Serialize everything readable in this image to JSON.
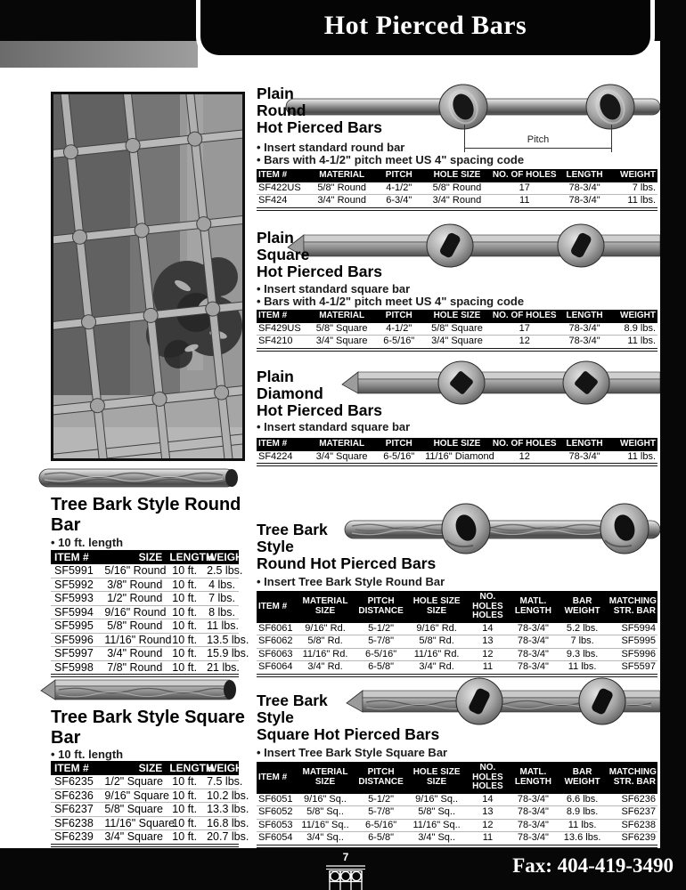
{
  "header": {
    "title": "Hot Pierced Bars"
  },
  "footer": {
    "page_number": "7",
    "fax": "Fax: 404-419-3490",
    "rail_icon": "railing-grille-icon"
  },
  "left_column": {
    "round_bar": {
      "title": "Tree Bark Style Round\nBar",
      "bullet": "10 ft. length",
      "headers": [
        "ITEM #",
        "SIZE",
        "LENGTH",
        "WEIGHT"
      ],
      "rows": [
        [
          "SF5991",
          "5/16\" Round",
          "10 ft.",
          "2.5 lbs."
        ],
        [
          "SF5992",
          "3/8\" Round",
          "10 ft.",
          "4 lbs."
        ],
        [
          "SF5993",
          "1/2\" Round",
          "10 ft.",
          "7 lbs."
        ],
        [
          "SF5994",
          "9/16\" Round",
          "10 ft.",
          "8 lbs."
        ],
        [
          "SF5995",
          "5/8\" Round",
          "10 ft.",
          "11 lbs."
        ],
        [
          "SF5996",
          "11/16\" Round",
          "10 ft.",
          "13.5 lbs."
        ],
        [
          "SF5997",
          "3/4\" Round",
          "10 ft.",
          "15.9 lbs."
        ],
        [
          "SF5998",
          "7/8\" Round",
          "10 ft.",
          "21 lbs."
        ]
      ]
    },
    "square_bar": {
      "title": "Tree Bark Style Square\nBar",
      "bullet": "10 ft. length",
      "headers": [
        "ITEM #",
        "SIZE",
        "LENGTH",
        "WEIGHT"
      ],
      "rows": [
        [
          "SF6235",
          "1/2\" Square",
          "10 ft.",
          "7.5 lbs."
        ],
        [
          "SF6236",
          "9/16\" Square",
          "10 ft.",
          "10.2 lbs."
        ],
        [
          "SF6237",
          "5/8\" Square",
          "10 ft.",
          "13.3 lbs."
        ],
        [
          "SF6238",
          "11/16\" Square",
          "10 ft.",
          "16.8 lbs."
        ],
        [
          "SF6239",
          "3/4\" Square",
          "10 ft.",
          "20.7 lbs."
        ]
      ]
    }
  },
  "right_column": {
    "plain_round": {
      "title": "Plain\nRound\nHot Pierced Bars",
      "bullets": [
        "Insert standard round bar",
        "Bars with 4-1/2\" pitch meet US 4\" spacing code"
      ],
      "pitch_label": "Pitch",
      "headers": [
        "ITEM #",
        "MATERIAL",
        "PITCH",
        "HOLE SIZE",
        "NO. OF HOLES",
        "LENGTH",
        "WEIGHT"
      ],
      "rows": [
        [
          "SF422US",
          "5/8\" Round",
          "4-1/2\"",
          "5/8\" Round",
          "17",
          "78-3/4\"",
          "7 lbs."
        ],
        [
          "SF424",
          "3/4\" Round",
          "6-3/4\"",
          "3/4\" Round",
          "11",
          "78-3/4\"",
          "11 lbs."
        ]
      ]
    },
    "plain_square": {
      "title": "Plain\nSquare\nHot Pierced Bars",
      "bullets": [
        "Insert standard square bar",
        "Bars with 4-1/2\" pitch meet US 4\" spacing code"
      ],
      "headers": [
        "ITEM #",
        "MATERIAL",
        "PITCH",
        "HOLE SIZE",
        "NO. OF HOLES",
        "LENGTH",
        "WEIGHT"
      ],
      "rows": [
        [
          "SF429US",
          "5/8\" Square",
          "4-1/2\"",
          "5/8\" Square",
          "17",
          "78-3/4\"",
          "8.9 lbs."
        ],
        [
          "SF4210",
          "3/4\" Square",
          "6-5/16\"",
          "3/4\" Square",
          "12",
          "78-3/4\"",
          "11 lbs."
        ]
      ]
    },
    "plain_diamond": {
      "title": "Plain\nDiamond\nHot Pierced Bars",
      "bullets": [
        "Insert standard square bar"
      ],
      "headers": [
        "ITEM #",
        "MATERIAL",
        "PITCH",
        "HOLE SIZE",
        "NO. OF HOLES",
        "LENGTH",
        "WEIGHT"
      ],
      "rows": [
        [
          "SF4224",
          "3/4\" Square",
          "6-5/16\"",
          "11/16\" Diamond",
          "12",
          "78-3/4\"",
          "11 lbs."
        ]
      ]
    },
    "tree_round": {
      "title": "Tree Bark\nStyle\nRound Hot Pierced Bars",
      "bullets": [
        "Insert Tree Bark Style Round Bar"
      ],
      "headers": [
        "ITEM #",
        "MATERIAL\nSIZE",
        "PITCH\nDISTANCE",
        "HOLE SIZE\nSIZE",
        "NO. HOLES\nHOLES",
        "MATL.\nLENGTH",
        "BAR\nWEIGHT",
        "MATCHING\nSTR. BAR"
      ],
      "rows": [
        [
          "SF6061",
          "9/16\" Rd.",
          "5-1/2\"",
          "9/16\" Rd.",
          "14",
          "78-3/4\"",
          "5.2 lbs.",
          "SF5994"
        ],
        [
          "SF6062",
          "5/8\" Rd.",
          "5-7/8\"",
          "5/8\" Rd.",
          "13",
          "78-3/4\"",
          "7 lbs.",
          "SF5995"
        ],
        [
          "SF6063",
          "11/16\" Rd.",
          "6-5/16\"",
          "11/16\" Rd.",
          "12",
          "78-3/4\"",
          "9.3 lbs.",
          "SF5996"
        ],
        [
          "SF6064",
          "3/4\" Rd.",
          "6-5/8\"",
          "3/4\" Rd.",
          "11",
          "78-3/4\"",
          "11 lbs.",
          "SF5597"
        ]
      ]
    },
    "tree_square": {
      "title": "Tree Bark\nStyle\nSquare Hot Pierced Bars",
      "bullets": [
        "Insert Tree Bark Style Square Bar"
      ],
      "headers": [
        "ITEM #",
        "MATERIAL\nSIZE",
        "PITCH\nDISTANCE",
        "HOLE SIZE\nSIZE",
        "NO. HOLES\nHOLES",
        "MATL.\nLENGTH",
        "BAR\nWEIGHT",
        "MATCHING\nSTR. BAR"
      ],
      "rows": [
        [
          "SF6051",
          "9/16\" Sq..",
          "5-1/2\"",
          "9/16\" Sq..",
          "14",
          "78-3/4\"",
          "6.6 lbs.",
          "SF6236"
        ],
        [
          "SF6052",
          "5/8\" Sq..",
          "5-7/8\"",
          "5/8\" Sq..",
          "13",
          "78-3/4\"",
          "8.9 lbs.",
          "SF6237"
        ],
        [
          "SF6053",
          "11/16\" Sq..",
          "6-5/16\"",
          "11/16\" Sq..",
          "12",
          "78-3/4\"",
          "11 lbs.",
          "SF6238"
        ],
        [
          "SF6054",
          "3/4\" Sq..",
          "6-5/8\"",
          "3/4\" Sq..",
          "11",
          "78-3/4\"",
          "13.6 lbs.",
          "SF6239"
        ]
      ]
    }
  }
}
